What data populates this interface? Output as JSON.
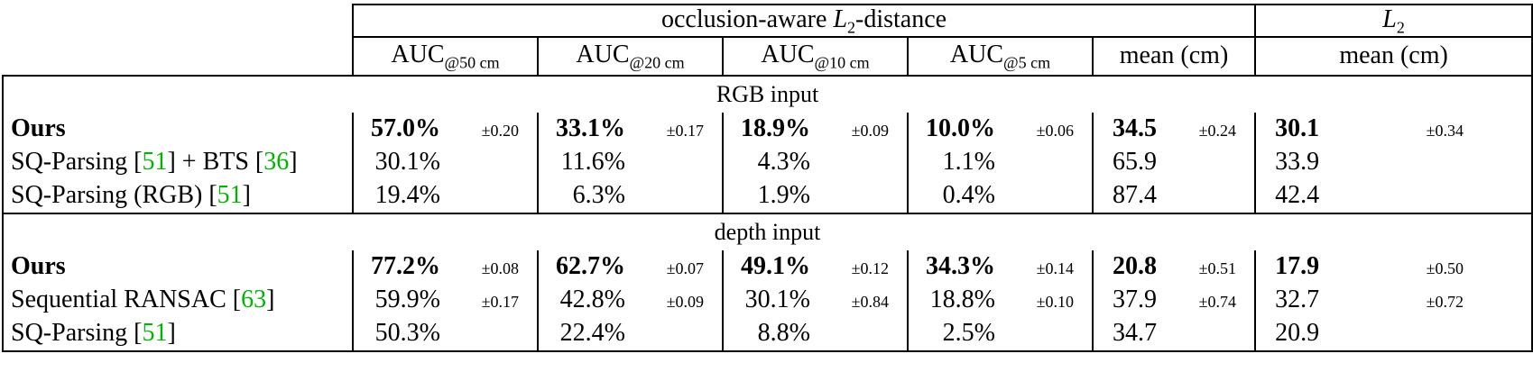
{
  "table": {
    "header": {
      "group1": {
        "prefix": "occlusion-aware ",
        "math": "L",
        "sub": "2",
        "suffix": "-distance"
      },
      "group2": {
        "math": "L",
        "sub": "2"
      },
      "auc_cols": [
        {
          "main": "AUC",
          "sub": "@50 cm"
        },
        {
          "main": "AUC",
          "sub": "@20 cm"
        },
        {
          "main": "AUC",
          "sub": "@10 cm"
        },
        {
          "main": "AUC",
          "sub": "@5 cm"
        }
      ],
      "mean_label": "mean (cm)",
      "l2_mean_label": "mean (cm)"
    },
    "colors": {
      "citation_green": "#00b400",
      "text": "#000000",
      "border": "#000000"
    },
    "sections": [
      {
        "title": "RGB input",
        "rows": [
          {
            "bold": true,
            "method": [
              {
                "t": "Ours"
              }
            ],
            "cells": [
              {
                "v": "57.0%",
                "pm": "±0.20"
              },
              {
                "v": "33.1%",
                "pm": "±0.17"
              },
              {
                "v": "18.9%",
                "pm": "±0.09"
              },
              {
                "v": "10.0%",
                "pm": "±0.06"
              },
              {
                "v": "34.5",
                "pm": "±0.24"
              },
              {
                "v": "30.1",
                "pm": "±0.34"
              }
            ]
          },
          {
            "bold": false,
            "method": [
              {
                "t": "SQ-Parsing ["
              },
              {
                "t": "51",
                "cite": true
              },
              {
                "t": "] + BTS ["
              },
              {
                "t": "36",
                "cite": true
              },
              {
                "t": "]"
              }
            ],
            "cells": [
              {
                "v": "30.1%"
              },
              {
                "v": "11.6%"
              },
              {
                "v": "4.3%"
              },
              {
                "v": "1.1%"
              },
              {
                "v": "65.9"
              },
              {
                "v": "33.9"
              }
            ]
          },
          {
            "bold": false,
            "method": [
              {
                "t": "SQ-Parsing (RGB) ["
              },
              {
                "t": "51",
                "cite": true
              },
              {
                "t": "]"
              }
            ],
            "cells": [
              {
                "v": "19.4%"
              },
              {
                "v": "6.3%"
              },
              {
                "v": "1.9%"
              },
              {
                "v": "0.4%"
              },
              {
                "v": "87.4"
              },
              {
                "v": "42.4"
              }
            ]
          }
        ]
      },
      {
        "title": "depth input",
        "rows": [
          {
            "bold": true,
            "method": [
              {
                "t": "Ours"
              }
            ],
            "cells": [
              {
                "v": "77.2%",
                "pm": "±0.08"
              },
              {
                "v": "62.7%",
                "pm": "±0.07"
              },
              {
                "v": "49.1%",
                "pm": "±0.12"
              },
              {
                "v": "34.3%",
                "pm": "±0.14"
              },
              {
                "v": "20.8",
                "pm": "±0.51"
              },
              {
                "v": "17.9",
                "pm": "±0.50"
              }
            ]
          },
          {
            "bold": false,
            "method": [
              {
                "t": "Sequential RANSAC ["
              },
              {
                "t": "63",
                "cite": true
              },
              {
                "t": "]"
              }
            ],
            "cells": [
              {
                "v": "59.9%",
                "pm": "±0.17"
              },
              {
                "v": "42.8%",
                "pm": "±0.09"
              },
              {
                "v": "30.1%",
                "pm": "±0.84"
              },
              {
                "v": "18.8%",
                "pm": "±0.10"
              },
              {
                "v": "37.9",
                "pm": "±0.74"
              },
              {
                "v": "32.7",
                "pm": "±0.72"
              }
            ]
          },
          {
            "bold": false,
            "method": [
              {
                "t": "SQ-Parsing ["
              },
              {
                "t": "51",
                "cite": true
              },
              {
                "t": "]"
              }
            ],
            "cells": [
              {
                "v": "50.3%"
              },
              {
                "v": "22.4%"
              },
              {
                "v": "8.8%"
              },
              {
                "v": "2.5%"
              },
              {
                "v": "34.7"
              },
              {
                "v": "20.9"
              }
            ]
          }
        ]
      }
    ]
  }
}
